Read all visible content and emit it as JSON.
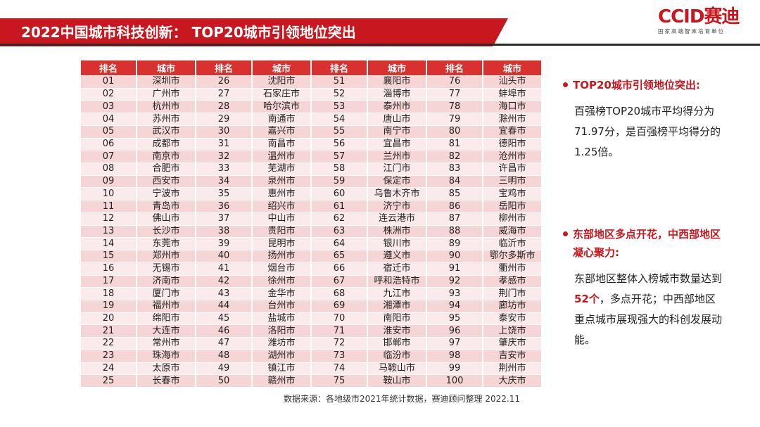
{
  "header": {
    "title": "2022中国城市科技创新： TOP20城市引领地位突出"
  },
  "logo": {
    "text": "CCID赛迪",
    "subtitle": "国家高端智库培育单位"
  },
  "table": {
    "headers": [
      "排名",
      "城市",
      "排名",
      "城市",
      "排名",
      "城市",
      "排名",
      "城市"
    ],
    "rows": [
      [
        "01",
        "深圳市",
        "26",
        "沈阳市",
        "51",
        "襄阳市",
        "76",
        "汕头市"
      ],
      [
        "02",
        "广州市",
        "27",
        "石家庄市",
        "52",
        "淄博市",
        "77",
        "蚌埠市"
      ],
      [
        "03",
        "杭州市",
        "28",
        "哈尔滨市",
        "53",
        "泰州市",
        "78",
        "海口市"
      ],
      [
        "04",
        "苏州市",
        "29",
        "南通市",
        "54",
        "唐山市",
        "79",
        "滁州市"
      ],
      [
        "05",
        "武汉市",
        "30",
        "嘉兴市",
        "55",
        "南宁市",
        "80",
        "宜春市"
      ],
      [
        "06",
        "成都市",
        "31",
        "南昌市",
        "56",
        "宜昌市",
        "81",
        "德阳市"
      ],
      [
        "07",
        "南京市",
        "32",
        "温州市",
        "57",
        "兰州市",
        "82",
        "沧州市"
      ],
      [
        "08",
        "合肥市",
        "33",
        "芜湖市",
        "58",
        "江门市",
        "83",
        "许昌市"
      ],
      [
        "09",
        "西安市",
        "34",
        "泉州市",
        "59",
        "保定市",
        "84",
        "三明市"
      ],
      [
        "10",
        "宁波市",
        "35",
        "惠州市",
        "60",
        "乌鲁木齐市",
        "85",
        "宝鸡市"
      ],
      [
        "11",
        "青岛市",
        "36",
        "绍兴市",
        "61",
        "济宁市",
        "86",
        "岳阳市"
      ],
      [
        "12",
        "佛山市",
        "37",
        "中山市",
        "62",
        "连云港市",
        "87",
        "柳州市"
      ],
      [
        "13",
        "长沙市",
        "38",
        "贵阳市",
        "63",
        "株洲市",
        "88",
        "威海市"
      ],
      [
        "14",
        "东莞市",
        "39",
        "昆明市",
        "64",
        "银川市",
        "89",
        "临沂市"
      ],
      [
        "15",
        "郑州市",
        "40",
        "扬州市",
        "65",
        "遵义市",
        "90",
        "鄂尔多斯市"
      ],
      [
        "16",
        "无锡市",
        "41",
        "烟台市",
        "66",
        "宿迁市",
        "91",
        "衢州市"
      ],
      [
        "17",
        "济南市",
        "42",
        "徐州市",
        "67",
        "呼和浩特市",
        "92",
        "孝感市"
      ],
      [
        "18",
        "厦门市",
        "43",
        "金华市",
        "68",
        "九江市",
        "93",
        "荆门市"
      ],
      [
        "19",
        "福州市",
        "44",
        "台州市",
        "69",
        "湘潭市",
        "94",
        "廊坊市"
      ],
      [
        "20",
        "绵阳市",
        "45",
        "盐城市",
        "70",
        "南阳市",
        "95",
        "泰安市"
      ],
      [
        "21",
        "大连市",
        "46",
        "洛阳市",
        "71",
        "淮安市",
        "96",
        "上饶市"
      ],
      [
        "22",
        "常州市",
        "47",
        "潍坊市",
        "72",
        "邯郸市",
        "97",
        "肇庆市"
      ],
      [
        "23",
        "珠海市",
        "48",
        "湖州市",
        "73",
        "临汾市",
        "98",
        "吉安市"
      ],
      [
        "24",
        "太原市",
        "49",
        "镇江市",
        "74",
        "马鞍山市",
        "99",
        "荆州市"
      ],
      [
        "25",
        "长春市",
        "50",
        "赣州市",
        "75",
        "鞍山市",
        "100",
        "大庆市"
      ]
    ]
  },
  "source": "数据来源：各地级市2021年统计数据，赛迪顾问整理 2022.11",
  "panel1": {
    "heading": "TOP20城市引领地位突出:",
    "text": "百强榜TOP20城市平均得分为71.97分，是百强榜平均得分的1.25倍。"
  },
  "panel2": {
    "heading": "东部地区多点开花，中西部地区凝心聚力:",
    "text_before": "东部地区整体入榜城市数量达到",
    "highlight": "52个",
    "text_after": "，多点开花；中西部地区重点城市展现强大的科创发展动能。"
  },
  "colors": {
    "accent": "#c8171e",
    "row_light": "#fbeaeb",
    "row_dark": "#f6d5d7"
  }
}
